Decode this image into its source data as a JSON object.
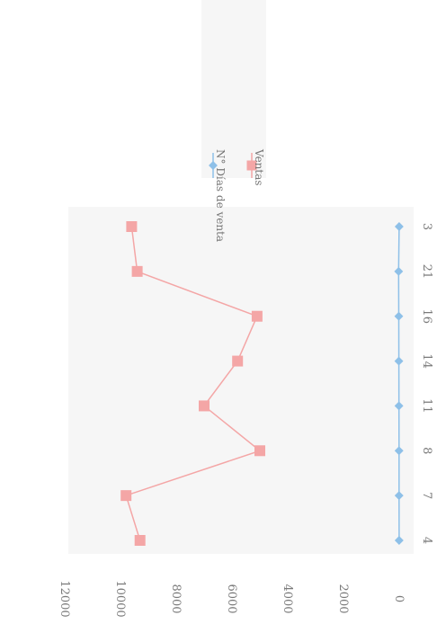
{
  "chart_data": {
    "type": "line",
    "orientation": "rotated-90-clockwise",
    "categories": [
      "4",
      "7",
      "8",
      "11",
      "14",
      "16",
      "21",
      "3"
    ],
    "yticks": [
      0,
      2000,
      4000,
      6000,
      8000,
      10000,
      12000
    ],
    "ylim": [
      0,
      12000
    ],
    "grid": false,
    "legend_position": "top-right",
    "series": [
      {
        "name": "N° Días de venta",
        "values": [
          4,
          7,
          8,
          11,
          14,
          16,
          21,
          3
        ],
        "color": "#8ec0e8",
        "marker": "diamond"
      },
      {
        "name": "Ventas",
        "values": [
          9300,
          9800,
          5000,
          7000,
          5800,
          5100,
          9400,
          9600
        ],
        "color": "#f4a6a6",
        "marker": "square"
      }
    ]
  }
}
